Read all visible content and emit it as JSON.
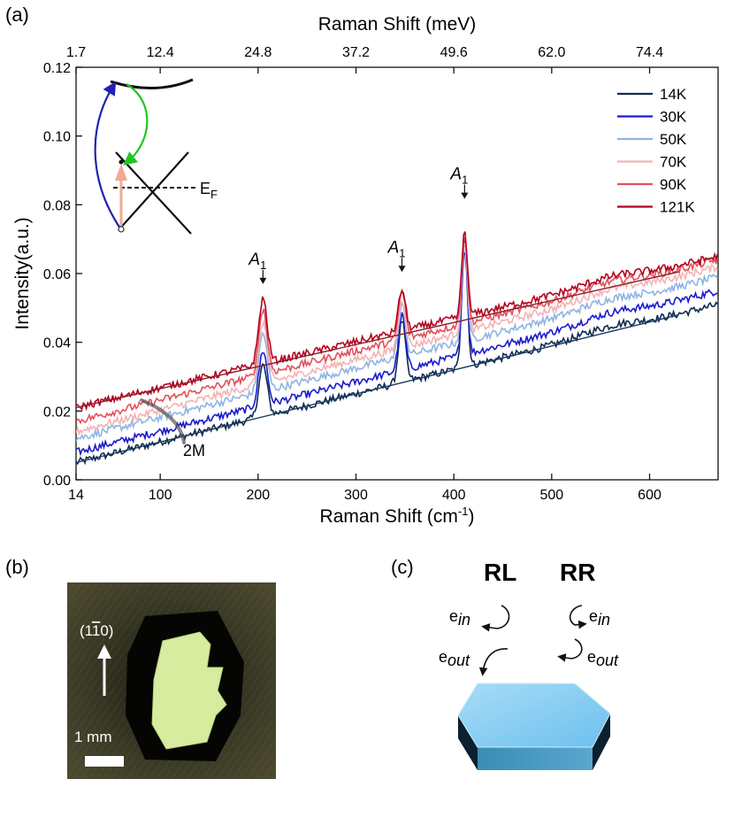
{
  "panels": {
    "a": "(a)",
    "b": "(b)",
    "c": "(c)"
  },
  "chart_data": {
    "type": "line",
    "xlabel": "Raman Shift (cm",
    "xlabel_sup": "-1",
    "xlabel_tail": ")",
    "ylabel": "Intensity(a.u.)",
    "top_xlabel": "Raman Shift (meV)",
    "xlim": [
      14,
      670
    ],
    "ylim": [
      0.0,
      0.12
    ],
    "x_ticks": [
      14,
      100,
      200,
      300,
      400,
      500,
      600
    ],
    "x_tick_labels": [
      "14",
      "100",
      "200",
      "300",
      "400",
      "500",
      "600"
    ],
    "y_ticks": [
      0.0,
      0.02,
      0.04,
      0.06,
      0.08,
      0.1,
      0.12
    ],
    "y_tick_labels": [
      "0.00",
      "0.02",
      "0.04",
      "0.06",
      "0.08",
      "0.10",
      "0.12"
    ],
    "top_ticks_cm": [
      14,
      100,
      200,
      300,
      400,
      500,
      600
    ],
    "top_tick_labels": [
      "1.7",
      "12.4",
      "24.8",
      "37.2",
      "49.6",
      "62.0",
      "74.4"
    ],
    "series": [
      {
        "name": "14K",
        "color": "#0d2b52",
        "baseline_start": 0.005,
        "baseline_end": 0.051,
        "peaks": [
          0.015,
          0.018,
          0.038
        ]
      },
      {
        "name": "30K",
        "color": "#1a1ad0",
        "baseline_start": 0.008,
        "baseline_end": 0.055,
        "peaks": [
          0.016,
          0.016,
          0.031
        ]
      },
      {
        "name": "50K",
        "color": "#8fb4e3",
        "baseline_start": 0.012,
        "baseline_end": 0.059,
        "peaks": [
          0.017,
          0.015,
          0.029
        ]
      },
      {
        "name": "70K",
        "color": "#f3b3b3",
        "baseline_start": 0.014,
        "baseline_end": 0.062,
        "peaks": [
          0.018,
          0.014,
          0.027
        ]
      },
      {
        "name": "90K",
        "color": "#e2525b",
        "baseline_start": 0.017,
        "baseline_end": 0.064,
        "peaks": [
          0.019,
          0.014,
          0.026
        ]
      },
      {
        "name": "121K",
        "color": "#b3001e",
        "baseline_start": 0.021,
        "baseline_end": 0.065,
        "peaks": [
          0.019,
          0.012,
          0.025
        ]
      }
    ],
    "peak_positions_cm": [
      205,
      347,
      411
    ],
    "peak_labels": [
      "A",
      "A",
      "A"
    ],
    "peak_label_sub": "1",
    "peak_label_values": [
      0.059,
      0.0625,
      0.0838
    ],
    "reference_lines": [
      {
        "color": "#8a1d2b",
        "x": [
          14,
          630
        ],
        "y": [
          0.021,
          0.0605
        ]
      },
      {
        "color": "#1d3b5c",
        "x": [
          14,
          630
        ],
        "y": [
          0.005,
          0.048
        ]
      }
    ],
    "annotation_2M": {
      "text": "2M",
      "x": 100,
      "y": 0.02
    },
    "inset_label": "E",
    "inset_label_sub": "F"
  },
  "panel_b": {
    "direction_label": "(1",
    "direction_label_bar": "1",
    "direction_label_tail": "0)",
    "scale_label": "1 mm"
  },
  "panel_c": {
    "rl": "RL",
    "rr": "RR",
    "e_in_left": "e",
    "e_in_left_sub": "in",
    "e_out_left": "e",
    "e_out_left_sub": "out",
    "e_in_right": "e",
    "e_in_right_sub": "in",
    "e_out_right": "e",
    "e_out_right_sub": "out"
  }
}
